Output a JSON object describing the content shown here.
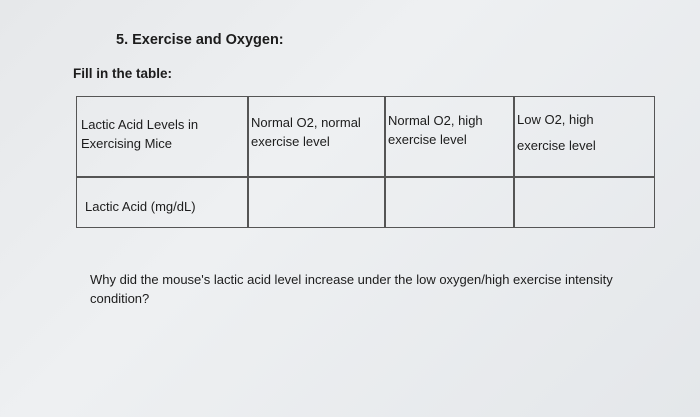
{
  "heading": "5.  Exercise and Oxygen:",
  "instruction": "Fill in the table:",
  "table": {
    "header": [
      "Lactic Acid Levels in Exercising Mice",
      "Normal O2, normal exercise level",
      "Normal O2, high exercise level",
      "Low O2, high exercise level"
    ],
    "row_label": "Lactic Acid (mg/dL)",
    "row_values": [
      "",
      "",
      ""
    ]
  },
  "question": "Why did the mouse's lactic acid level increase under the low oxygen/high exercise intensity condition?"
}
